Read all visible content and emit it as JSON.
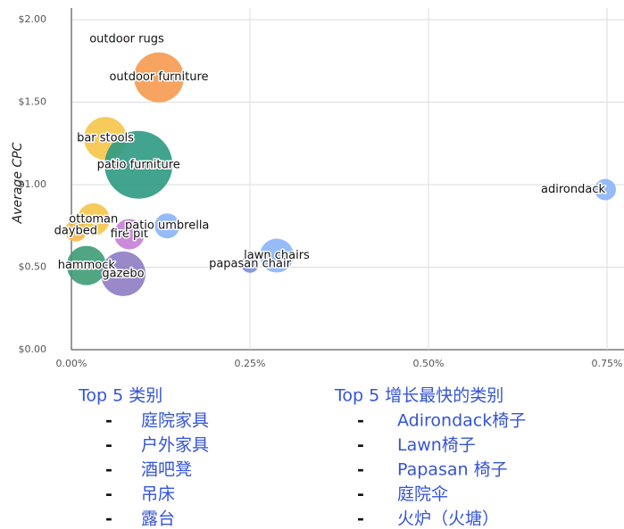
{
  "chart_data": {
    "type": "scatter",
    "ylabel": "Average  CPC",
    "labels": [
      "outdoor rugs",
      "outdoor furniture",
      "bar stools",
      "patio furniture",
      "adirondack",
      "ottoman",
      "daybed",
      "fire pit",
      "patio umbrella",
      "lawn chairs",
      "papasan chair",
      "hammock",
      "gazebo"
    ],
    "x": [
      0.0775,
      0.1225,
      0.0475,
      0.094,
      0.7475,
      0.031,
      0.006,
      0.081,
      0.134,
      0.2875,
      0.25,
      0.021,
      0.0725
    ],
    "values": [
      1.88,
      1.65,
      1.28,
      1.12,
      0.97,
      0.79,
      0.72,
      0.7,
      0.75,
      0.57,
      0.52,
      0.51,
      0.46
    ],
    "sizes": [
      3,
      28,
      24,
      38,
      12,
      18,
      12,
      17,
      14,
      19,
      10,
      22,
      25
    ],
    "colors": [
      "#f4a7c0",
      "#f59a4f",
      "#f5c54a",
      "#2e9a82",
      "#8ab4f8",
      "#f5c54a",
      "#f5b84a",
      "#c77dd7",
      "#8ab4f8",
      "#8ab4f8",
      "#7b8fe0",
      "#3d9c74",
      "#8e7cc3"
    ],
    "xlim": [
      0,
      0.7725
    ],
    "ylim": [
      0,
      2.07
    ],
    "xticks": [
      {
        "value": 0,
        "label": "0.00%"
      },
      {
        "value": 0.25,
        "label": "0.25%"
      },
      {
        "value": 0.5,
        "label": "0.50%"
      },
      {
        "value": 0.75,
        "label": "0.75%"
      }
    ],
    "yticks": [
      {
        "value": 0,
        "label": "$0.00"
      },
      {
        "value": 0.5,
        "label": "$0.50"
      },
      {
        "value": 1,
        "label": "$1.00"
      },
      {
        "value": 1.5,
        "label": "$1.50"
      },
      {
        "value": 2,
        "label": "$2.00"
      }
    ],
    "grid": true
  },
  "lists": [
    {
      "title": "Top 5 类别",
      "items": [
        "庭院家具",
        "户外家具",
        "酒吧凳",
        "吊床",
        "露台"
      ]
    },
    {
      "title": "Top 5 增长最快的类别",
      "items": [
        "Adirondack椅子",
        "Lawn椅子",
        "Papasan 椅子",
        "庭院伞",
        "火炉（火塘）"
      ]
    }
  ]
}
